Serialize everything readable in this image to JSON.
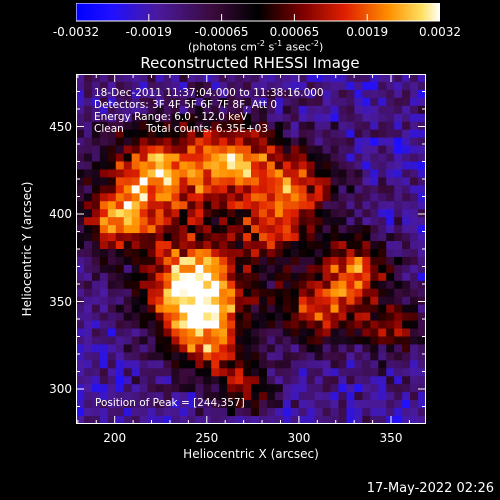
{
  "chart_data": {
    "type": "heatmap",
    "title": "Reconstructed RHESSI Image",
    "xlabel": "Heliocentric X (arcsec)",
    "ylabel": "Heliocentric Y (arcsec)",
    "xlim": [
      179,
      369
    ],
    "ylim": [
      280,
      480
    ],
    "xticks": [
      200,
      250,
      300,
      350
    ],
    "yticks": [
      300,
      350,
      400,
      450
    ],
    "colorbar": {
      "range": [
        -0.0032,
        0.0032
      ],
      "ticks": [
        "-0.0032",
        "-0.0019",
        "-0.00065",
        "0.00065",
        "0.0019",
        "0.0032"
      ],
      "unit_base": "(photons cm",
      "unit_sup1": "-2",
      "unit_mid": " s",
      "unit_sup2": "-1",
      "unit_mid2": " asec",
      "unit_sup3": "-2",
      "unit_end": ")"
    },
    "annotations": {
      "time_range": "18-Dec-2011 11:37:04.000 to 11:38:16.000",
      "detectors": "Detectors: 3F 4F 5F 6F 7F 8F, Att 0",
      "energy": "Energy Range: 6.0 - 12.0 keV",
      "method": "Clean",
      "counts": "Total counts: 6.35E+03",
      "peak": "Position of Peak = [244,357]"
    },
    "peak_position": [
      244,
      357
    ],
    "footer_date": "17-May-2022 02:26"
  }
}
